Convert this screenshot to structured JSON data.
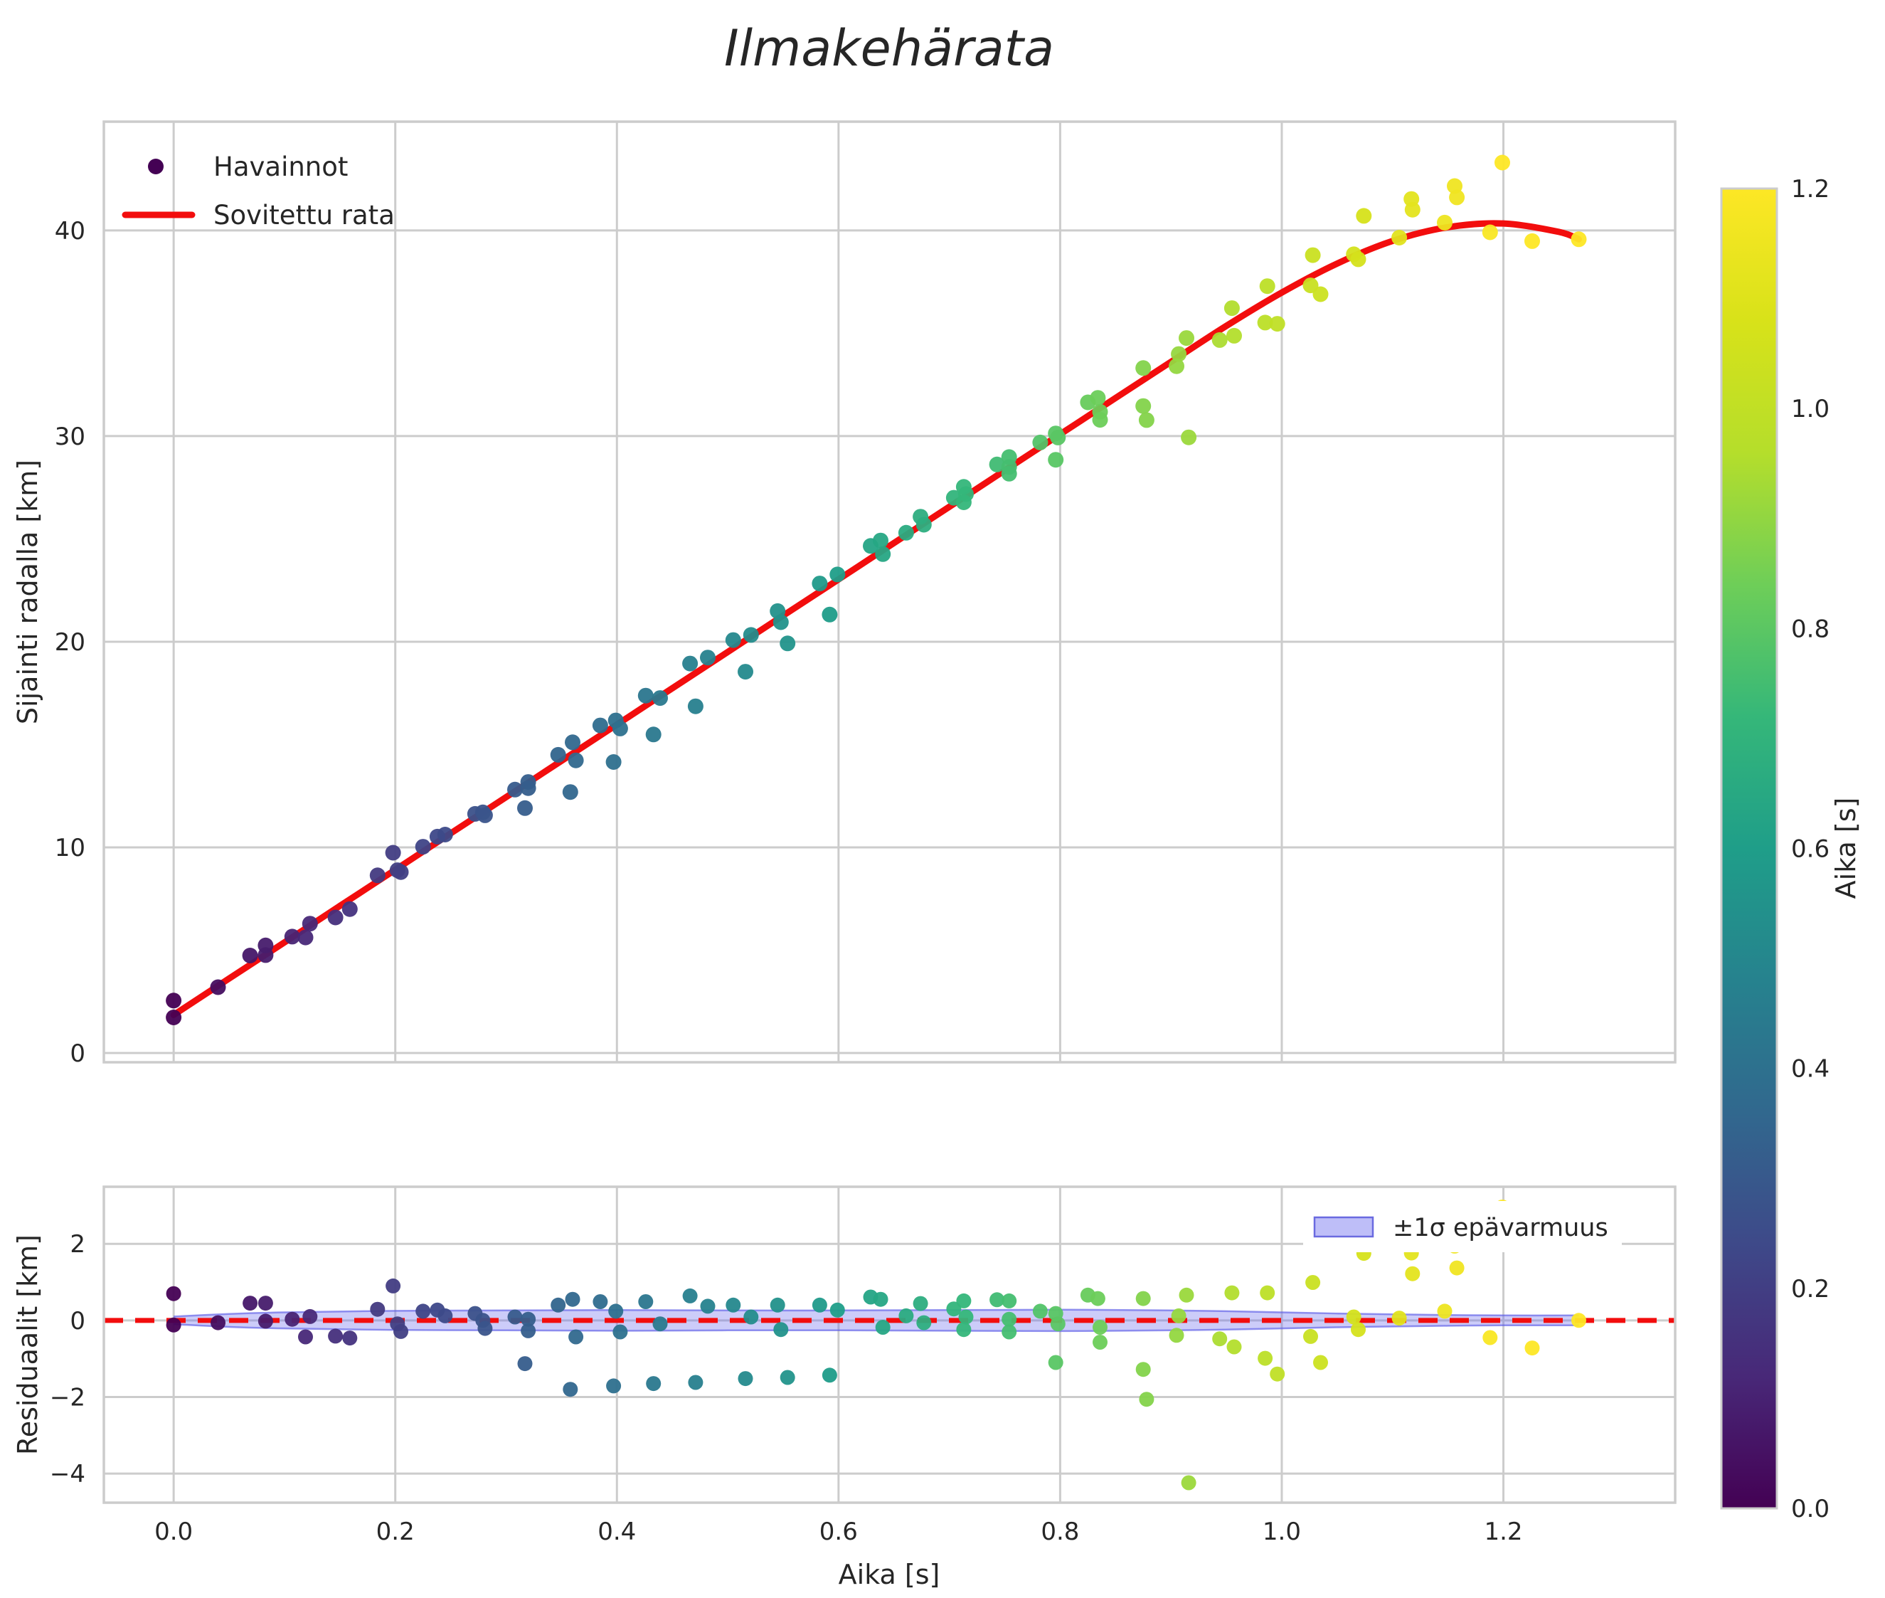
{
  "title": "Ilmakehärata",
  "colors": {
    "fit_line_red": "#f20d0d",
    "zero_line_red": "#f20d0d",
    "band_fill": "rgba(99,99,238,0.33)",
    "band_edge": "rgba(92,92,230,0.65)",
    "legend_patch_fill": "rgba(99,99,238,0.42)",
    "legend_patch_edge": "#6a6ae0",
    "grid": "#cccccc",
    "spine": "#cccccc",
    "text": "#262626",
    "legend_marker_dot": "#440154",
    "viridis_stops": [
      "#440154",
      "#482878",
      "#3e4989",
      "#31688e",
      "#26828e",
      "#1f9e89",
      "#35b779",
      "#6ece58",
      "#b5de2b",
      "#d8e219",
      "#fde725"
    ]
  },
  "chart_data": [
    {
      "type": "scatter",
      "title": "Ilmakehärata",
      "ylabel": "Sijainti radalla [km]",
      "xlabel": "",
      "grid": true,
      "legend_position": "upper-left",
      "legend": [
        {
          "label": "Havainnot",
          "marker": "dot"
        },
        {
          "label": "Sovitettu rata",
          "marker": "line"
        }
      ],
      "xlim": [
        -0.063,
        1.355
      ],
      "ylim": [
        -0.45,
        45.29
      ],
      "xticks": [
        0.0,
        0.2,
        0.4,
        0.6,
        0.8,
        1.0,
        1.2
      ],
      "yticks": [
        0,
        10,
        20,
        30,
        40
      ],
      "ytick_labels": [
        "0",
        "10",
        "20",
        "30",
        "40"
      ],
      "color_by": "time",
      "colorbar": {
        "label": "Aika [s]",
        "range": [
          0.0,
          1.2
        ],
        "ticks": [
          0.0,
          0.2,
          0.4,
          0.6,
          0.8,
          1.0,
          1.2
        ],
        "tick_labels": [
          "0.0",
          "0.2",
          "0.4",
          "0.6",
          "0.8",
          "1.0",
          "1.2"
        ]
      },
      "points_tsr_comment": "each point = [time s, position km, residual km]; position = fit(t) + residual",
      "points": [
        [
          0.0,
          2.55,
          0.7
        ],
        [
          0.0,
          1.73,
          -0.12
        ],
        [
          0.04,
          3.2,
          -0.06
        ],
        [
          0.069,
          4.74,
          0.45
        ],
        [
          0.083,
          5.23,
          0.45
        ],
        [
          0.083,
          4.76,
          -0.02
        ],
        [
          0.107,
          5.66,
          0.03
        ],
        [
          0.119,
          5.62,
          -0.43
        ],
        [
          0.123,
          6.29,
          0.1
        ],
        [
          0.146,
          6.59,
          -0.41
        ],
        [
          0.159,
          7.0,
          -0.46
        ],
        [
          0.184,
          8.64,
          0.29
        ],
        [
          0.198,
          9.74,
          0.9
        ],
        [
          0.202,
          8.89,
          -0.09
        ],
        [
          0.205,
          8.8,
          -0.29
        ],
        [
          0.225,
          10.03,
          0.24
        ],
        [
          0.238,
          10.52,
          0.27
        ],
        [
          0.245,
          10.62,
          0.12
        ],
        [
          0.272,
          11.63,
          0.18
        ],
        [
          0.279,
          11.7,
          0.0
        ],
        [
          0.281,
          11.56,
          -0.21
        ],
        [
          0.308,
          12.81,
          0.09
        ],
        [
          0.317,
          11.91,
          -1.13
        ],
        [
          0.32,
          13.18,
          0.03
        ],
        [
          0.32,
          12.88,
          -0.27
        ],
        [
          0.347,
          14.5,
          0.4
        ],
        [
          0.358,
          12.69,
          -1.8
        ],
        [
          0.36,
          15.11,
          0.55
        ],
        [
          0.363,
          14.23,
          -0.43
        ],
        [
          0.385,
          15.93,
          0.49
        ],
        [
          0.397,
          14.15,
          -1.71
        ],
        [
          0.399,
          16.17,
          0.24
        ],
        [
          0.403,
          15.78,
          -0.3
        ],
        [
          0.426,
          17.38,
          0.49
        ],
        [
          0.433,
          15.49,
          -1.65
        ],
        [
          0.439,
          17.26,
          -0.09
        ],
        [
          0.466,
          18.94,
          0.64
        ],
        [
          0.471,
          16.86,
          -1.62
        ],
        [
          0.482,
          19.23,
          0.37
        ],
        [
          0.505,
          20.08,
          0.4
        ],
        [
          0.516,
          18.54,
          -1.52
        ],
        [
          0.521,
          20.33,
          0.09
        ],
        [
          0.545,
          21.49,
          0.4
        ],
        [
          0.548,
          20.95,
          -0.24
        ],
        [
          0.554,
          19.92,
          -1.49
        ],
        [
          0.583,
          22.83,
          0.4
        ],
        [
          0.592,
          21.32,
          -1.43
        ],
        [
          0.599,
          23.27,
          0.27
        ],
        [
          0.629,
          24.66,
          0.61
        ],
        [
          0.638,
          24.92,
          0.55
        ],
        [
          0.64,
          24.26,
          -0.18
        ],
        [
          0.661,
          25.3,
          0.12
        ],
        [
          0.674,
          26.08,
          0.44
        ],
        [
          0.677,
          25.69,
          -0.06
        ],
        [
          0.704,
          27.0,
          0.3
        ],
        [
          0.713,
          27.53,
          0.51
        ],
        [
          0.713,
          26.78,
          -0.24
        ],
        [
          0.715,
          27.18,
          0.09
        ],
        [
          0.743,
          28.62,
          0.54
        ],
        [
          0.754,
          28.98,
          0.51
        ],
        [
          0.754,
          28.5,
          0.03
        ],
        [
          0.754,
          28.17,
          -0.3
        ],
        [
          0.782,
          29.69,
          0.24
        ],
        [
          0.796,
          30.13,
          0.18
        ],
        [
          0.796,
          28.85,
          -1.1
        ],
        [
          0.798,
          29.93,
          -0.09
        ],
        [
          0.825,
          31.64,
          0.66
        ],
        [
          0.834,
          31.86,
          0.57
        ],
        [
          0.836,
          31.18,
          -0.18
        ],
        [
          0.836,
          30.79,
          -0.57
        ],
        [
          0.875,
          33.31,
          0.57
        ],
        [
          0.875,
          31.46,
          -1.28
        ],
        [
          0.878,
          30.78,
          -2.06
        ],
        [
          0.905,
          33.4,
          -0.39
        ],
        [
          0.907,
          33.99,
          0.12
        ],
        [
          0.914,
          34.77,
          0.66
        ],
        [
          0.916,
          29.94,
          -4.24
        ],
        [
          0.944,
          34.67,
          -0.48
        ],
        [
          0.955,
          36.22,
          0.72
        ],
        [
          0.957,
          34.88,
          -0.69
        ],
        [
          0.985,
          35.52,
          -0.99
        ],
        [
          0.987,
          37.29,
          0.72
        ],
        [
          0.996,
          35.46,
          -1.4
        ],
        [
          1.026,
          37.33,
          -0.42
        ],
        [
          1.028,
          38.8,
          0.99
        ],
        [
          1.035,
          36.9,
          -1.1
        ],
        [
          1.065,
          38.84,
          0.09
        ],
        [
          1.069,
          38.6,
          -0.24
        ],
        [
          1.074,
          40.71,
          1.75
        ],
        [
          1.106,
          39.65,
          0.06
        ],
        [
          1.117,
          41.53,
          1.76
        ],
        [
          1.118,
          41.01,
          1.22
        ],
        [
          1.147,
          40.38,
          0.24
        ],
        [
          1.156,
          42.16,
          1.94
        ],
        [
          1.158,
          41.61,
          1.37
        ],
        [
          1.188,
          39.91,
          -0.45
        ],
        [
          1.199,
          43.3,
          2.96
        ],
        [
          1.226,
          39.48,
          -0.72
        ],
        [
          1.268,
          39.57,
          0.0
        ]
      ],
      "fit_curve": [
        [
          0.0,
          1.85
        ],
        [
          0.05,
          3.62
        ],
        [
          0.1,
          5.38
        ],
        [
          0.15,
          7.15
        ],
        [
          0.2,
          8.91
        ],
        [
          0.25,
          10.68
        ],
        [
          0.3,
          12.44
        ],
        [
          0.35,
          14.21
        ],
        [
          0.4,
          15.97
        ],
        [
          0.45,
          17.74
        ],
        [
          0.5,
          19.5
        ],
        [
          0.55,
          21.27
        ],
        [
          0.6,
          23.03
        ],
        [
          0.65,
          24.8
        ],
        [
          0.7,
          26.56
        ],
        [
          0.75,
          28.33
        ],
        [
          0.8,
          30.09
        ],
        [
          0.85,
          31.85
        ],
        [
          0.9,
          33.61
        ],
        [
          0.95,
          35.36
        ],
        [
          1.0,
          36.98
        ],
        [
          1.05,
          38.39
        ],
        [
          1.1,
          39.49
        ],
        [
          1.15,
          40.16
        ],
        [
          1.2,
          40.34
        ],
        [
          1.25,
          39.93
        ],
        [
          1.268,
          39.57
        ]
      ]
    },
    {
      "type": "scatter",
      "ylabel": "Residuaalit [km]",
      "xlabel": "Aika [s]",
      "grid": true,
      "zero_line": true,
      "residuals_from_chart": 0,
      "xlim": [
        -0.063,
        1.355
      ],
      "ylim": [
        -4.76,
        3.49
      ],
      "xticks": [
        0.0,
        0.2,
        0.4,
        0.6,
        0.8,
        1.0,
        1.2
      ],
      "xtick_labels": [
        "0.0",
        "0.2",
        "0.4",
        "0.6",
        "0.8",
        "1.0",
        "1.2"
      ],
      "yticks": [
        2,
        0,
        -2,
        -4
      ],
      "ytick_labels": [
        "2",
        "0",
        "−2",
        "−4"
      ],
      "band": {
        "label": "±1σ epävarmuus",
        "sigma": [
          [
            0.0,
            0.1
          ],
          [
            0.05,
            0.17
          ],
          [
            0.1,
            0.21
          ],
          [
            0.2,
            0.25
          ],
          [
            0.3,
            0.26
          ],
          [
            0.4,
            0.27
          ],
          [
            0.5,
            0.26
          ],
          [
            0.6,
            0.26
          ],
          [
            0.7,
            0.27
          ],
          [
            0.8,
            0.28
          ],
          [
            0.9,
            0.26
          ],
          [
            0.95,
            0.24
          ],
          [
            1.0,
            0.21
          ],
          [
            1.05,
            0.18
          ],
          [
            1.1,
            0.16
          ],
          [
            1.15,
            0.14
          ],
          [
            1.2,
            0.13
          ],
          [
            1.268,
            0.13
          ]
        ]
      }
    }
  ]
}
